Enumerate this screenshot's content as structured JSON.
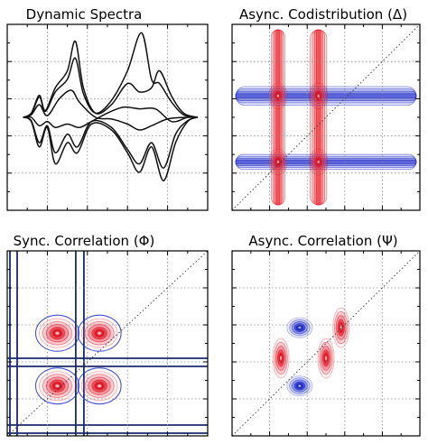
{
  "figure": {
    "panels": [
      {
        "id": "dynamic",
        "title": "Dynamic Spectra"
      },
      {
        "id": "async-codistribution",
        "title": "Async. Codistribution (Δ)"
      },
      {
        "id": "sync-correlation",
        "title": "Sync. Correlation (Φ)"
      },
      {
        "id": "async-correlation",
        "title": "Async. Correlation (Ψ)"
      }
    ]
  },
  "colors": {
    "positive": "#e8141c",
    "negative": "#1b26c8",
    "zero_line": "#1b2a6e",
    "line": "#111111",
    "grid": "#8a8a8a"
  },
  "chart_data": [
    {
      "type": "line",
      "title": "Dynamic Spectra",
      "xlabel": "",
      "ylabel": "",
      "xlim": [
        0,
        1
      ],
      "ylim": [
        -1.1,
        1.1
      ],
      "grid": true,
      "tick_labels": false,
      "series": [
        {
          "values": [
            [
              0.08,
              0.0
            ],
            [
              0.12,
              0.05
            ],
            [
              0.16,
              0.26
            ],
            [
              0.19,
              0.08
            ],
            [
              0.24,
              0.35
            ],
            [
              0.3,
              0.55
            ],
            [
              0.34,
              0.9
            ],
            [
              0.38,
              0.35
            ],
            [
              0.44,
              0.05
            ],
            [
              0.52,
              0.15
            ],
            [
              0.6,
              0.4
            ],
            [
              0.66,
              0.3
            ],
            [
              0.72,
              0.35
            ],
            [
              0.76,
              0.55
            ],
            [
              0.82,
              0.25
            ],
            [
              0.88,
              0.05
            ],
            [
              0.95,
              0.0
            ]
          ]
        },
        {
          "values": [
            [
              0.08,
              0.0
            ],
            [
              0.12,
              0.04
            ],
            [
              0.16,
              0.24
            ],
            [
              0.19,
              0.07
            ],
            [
              0.24,
              0.3
            ],
            [
              0.3,
              0.45
            ],
            [
              0.34,
              0.7
            ],
            [
              0.38,
              0.28
            ],
            [
              0.44,
              0.05
            ],
            [
              0.52,
              0.2
            ],
            [
              0.6,
              0.55
            ],
            [
              0.67,
              1.0
            ],
            [
              0.72,
              0.45
            ],
            [
              0.76,
              0.4
            ],
            [
              0.82,
              0.18
            ],
            [
              0.88,
              0.03
            ],
            [
              0.95,
              0.0
            ]
          ]
        },
        {
          "values": [
            [
              0.08,
              0.0
            ],
            [
              0.12,
              0.0
            ],
            [
              0.16,
              -0.1
            ],
            [
              0.2,
              -0.05
            ],
            [
              0.24,
              -0.12
            ],
            [
              0.3,
              -0.08
            ],
            [
              0.36,
              -0.12
            ],
            [
              0.42,
              -0.05
            ],
            [
              0.5,
              0.05
            ],
            [
              0.58,
              0.12
            ],
            [
              0.66,
              0.1
            ],
            [
              0.74,
              0.1
            ],
            [
              0.82,
              -0.05
            ],
            [
              0.9,
              0.0
            ],
            [
              0.95,
              0.0
            ]
          ]
        },
        {
          "values": [
            [
              0.08,
              0.0
            ],
            [
              0.12,
              -0.04
            ],
            [
              0.16,
              -0.3
            ],
            [
              0.2,
              -0.1
            ],
            [
              0.24,
              -0.42
            ],
            [
              0.3,
              -0.2
            ],
            [
              0.35,
              -0.35
            ],
            [
              0.42,
              -0.05
            ],
            [
              0.52,
              -0.12
            ],
            [
              0.6,
              -0.38
            ],
            [
              0.66,
              -0.55
            ],
            [
              0.72,
              -0.3
            ],
            [
              0.78,
              -0.6
            ],
            [
              0.84,
              -0.2
            ],
            [
              0.9,
              -0.04
            ],
            [
              0.95,
              0.0
            ]
          ]
        },
        {
          "values": [
            [
              0.08,
              0.0
            ],
            [
              0.12,
              -0.05
            ],
            [
              0.16,
              -0.35
            ],
            [
              0.2,
              -0.12
            ],
            [
              0.24,
              -0.55
            ],
            [
              0.3,
              -0.3
            ],
            [
              0.35,
              -0.42
            ],
            [
              0.42,
              -0.08
            ],
            [
              0.52,
              -0.15
            ],
            [
              0.6,
              -0.42
            ],
            [
              0.66,
              -0.65
            ],
            [
              0.72,
              -0.35
            ],
            [
              0.78,
              -0.75
            ],
            [
              0.84,
              -0.3
            ],
            [
              0.9,
              -0.05
            ],
            [
              0.95,
              0.0
            ]
          ]
        },
        {
          "values": [
            [
              0.08,
              0.0
            ],
            [
              0.12,
              0.03
            ],
            [
              0.16,
              0.15
            ],
            [
              0.2,
              0.02
            ],
            [
              0.26,
              0.22
            ],
            [
              0.32,
              0.32
            ],
            [
              0.36,
              0.18
            ],
            [
              0.44,
              0.0
            ],
            [
              0.52,
              -0.02
            ],
            [
              0.6,
              -0.08
            ],
            [
              0.66,
              -0.15
            ],
            [
              0.72,
              -0.1
            ],
            [
              0.8,
              -0.02
            ],
            [
              0.9,
              0.0
            ],
            [
              0.95,
              0.0
            ]
          ]
        }
      ]
    },
    {
      "type": "heatmap",
      "title": "Async. Codistribution (Δ)",
      "xlim": [
        0,
        1
      ],
      "ylim": [
        0,
        1
      ],
      "grid": true,
      "diagonal": true,
      "tick_labels": false,
      "ridges": [
        {
          "axis": "x",
          "at": 0.245,
          "width": 0.018,
          "sign": 1
        },
        {
          "axis": "x",
          "at": 0.46,
          "width": 0.022,
          "sign": 1
        },
        {
          "axis": "y",
          "at": 0.615,
          "width": 0.025,
          "sign": -1
        },
        {
          "axis": "y",
          "at": 0.26,
          "width": 0.02,
          "sign": -1
        }
      ],
      "peaks": [
        {
          "x": 0.245,
          "y": 0.615,
          "sign": 1
        },
        {
          "x": 0.46,
          "y": 0.615,
          "sign": 1
        },
        {
          "x": 0.245,
          "y": 0.26,
          "sign": 1
        },
        {
          "x": 0.46,
          "y": 0.26,
          "sign": 1
        }
      ]
    },
    {
      "type": "heatmap",
      "title": "Sync. Correlation (Φ)",
      "xlim": [
        0,
        1
      ],
      "ylim": [
        0,
        1
      ],
      "grid": true,
      "diagonal": true,
      "tick_labels": false,
      "peaks": [
        {
          "x": 0.25,
          "y": 0.555,
          "sign": 1
        },
        {
          "x": 0.46,
          "y": 0.555,
          "sign": 1
        },
        {
          "x": 0.25,
          "y": 0.27,
          "sign": 1
        },
        {
          "x": 0.46,
          "y": 0.27,
          "sign": 1
        }
      ]
    },
    {
      "type": "heatmap",
      "title": "Async. Correlation (Ψ)",
      "xlim": [
        0,
        1
      ],
      "ylim": [
        0,
        1
      ],
      "grid": true,
      "diagonal": true,
      "tick_labels": false,
      "peaks": [
        {
          "x": 0.36,
          "y": 0.585,
          "sign": -1
        },
        {
          "x": 0.26,
          "y": 0.42,
          "sign": 1
        },
        {
          "x": 0.5,
          "y": 0.42,
          "sign": 1
        },
        {
          "x": 0.36,
          "y": 0.27,
          "sign": -1
        },
        {
          "x": 0.58,
          "y": 0.585,
          "sign": 1
        }
      ]
    }
  ]
}
